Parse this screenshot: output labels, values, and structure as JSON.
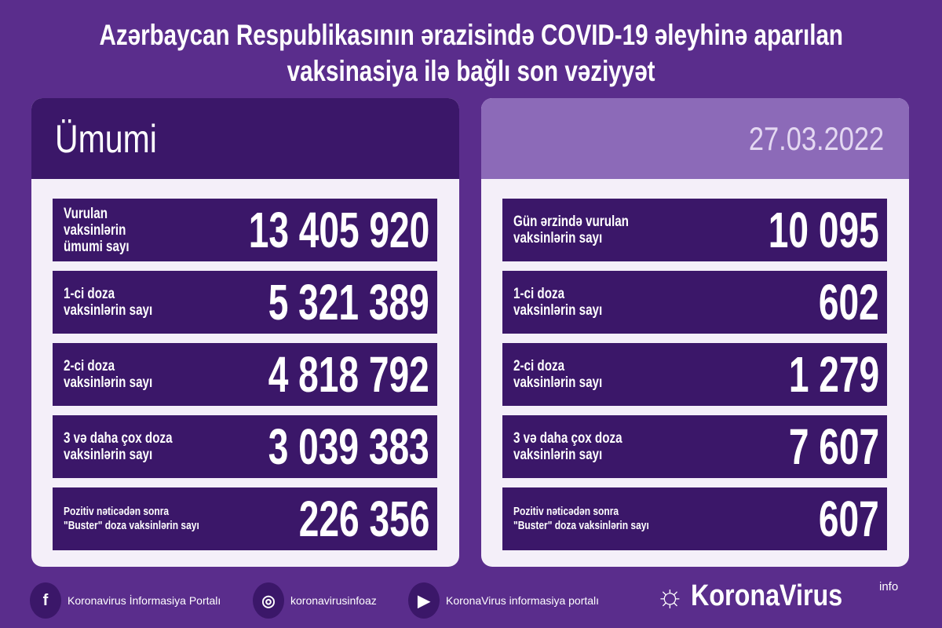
{
  "title": {
    "line1": "Azərbaycan Respublikasının ərazisində COVID-19 əleyhinə aparılan",
    "line2": "vaksinasiya ilə bağlı son vəziyyət"
  },
  "left": {
    "header": "Ümumi",
    "rows": [
      {
        "label": "Vurulan vaksinlərin\nümumi sayı",
        "value": "13 405 920"
      },
      {
        "label": "1-ci doza\nvaksinlərin sayı",
        "value": "5 321 389"
      },
      {
        "label": "2-ci doza\nvaksinlərin sayı",
        "value": "4 818 792"
      },
      {
        "label": "3 və daha çox doza\nvaksinlərin sayı",
        "value": "3 039 383"
      },
      {
        "label": "Pozitiv nəticədən sonra\n\"Buster\" doza vaksinlərin sayı",
        "value": "226 356"
      }
    ]
  },
  "right": {
    "header": "27.03.2022",
    "rows": [
      {
        "label": "Gün ərzində vurulan\nvaksinlərin sayı",
        "value": "10 095"
      },
      {
        "label": "1-ci doza\nvaksinlərin sayı",
        "value": "602"
      },
      {
        "label": "2-ci doza\nvaksinlərin sayı",
        "value": "1 279"
      },
      {
        "label": "3 və daha çox doza\nvaksinlərin sayı",
        "value": "7 607"
      },
      {
        "label": "Pozitiv nəticədən sonra\n\"Buster\" doza vaksinlərin sayı",
        "value": "607"
      }
    ]
  },
  "footer": {
    "facebook": "Koronavirus İnformasiya Portalı",
    "instagram": "koronavirusinfoaz",
    "youtube": "KoronaVirus informasiya portalı",
    "logo": "KoronaVirus",
    "logo_sup": "info"
  },
  "colors": {
    "background": "#5a2d8c",
    "box": "#3b1769",
    "date_box": "#8c6ab8"
  }
}
